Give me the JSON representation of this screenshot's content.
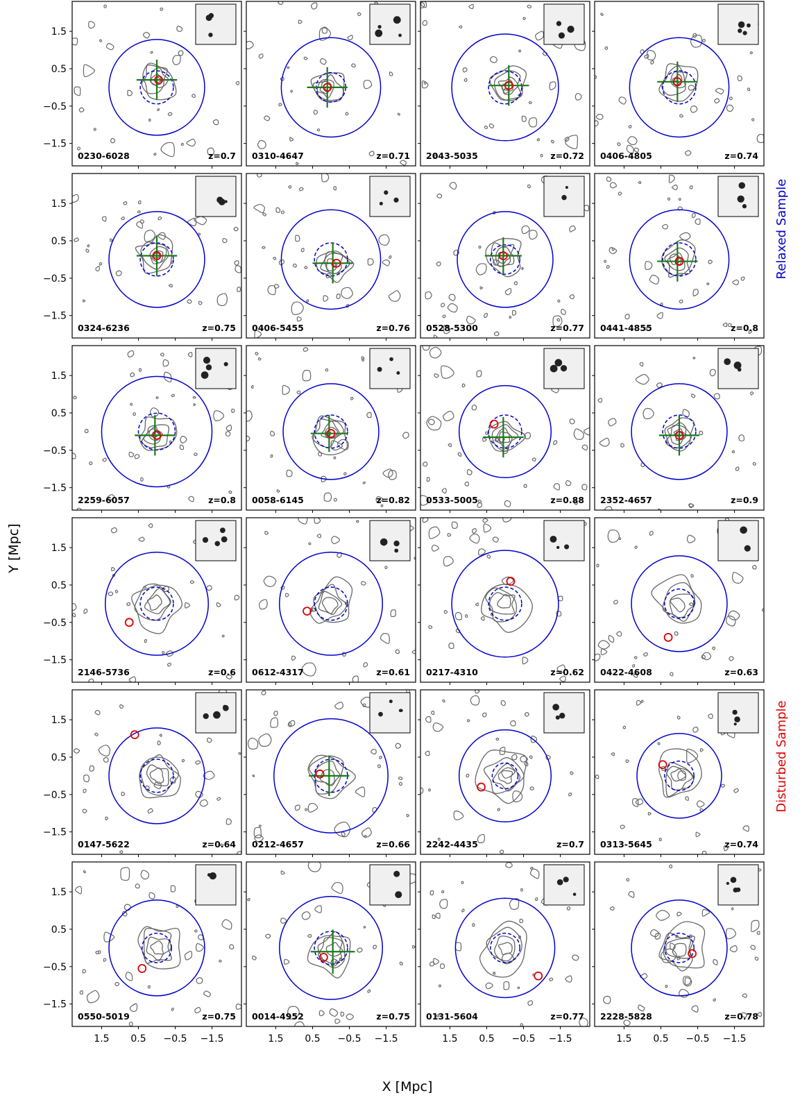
{
  "figure": {
    "ylabel": "Y [Mpc]",
    "xlabel": "X [Mpc]",
    "relaxed_label": "Relaxed Sample",
    "disturbed_label": "Disturbed Sample",
    "relaxed_color": "#0000cc",
    "disturbed_color": "#dd0000"
  },
  "chart_data": {
    "type": "scatter",
    "x_axis": {
      "label": "X [Mpc]",
      "inverted": true,
      "lim": [
        2.3,
        -2.3
      ],
      "ticks": [
        1.5,
        0.5,
        -0.5,
        -1.5
      ],
      "tick_labels": [
        "1.5",
        "0.5",
        "−0.5",
        "−1.5"
      ]
    },
    "y_axis": {
      "label": "Y [Mpc]",
      "lim": [
        -2.1,
        2.3
      ],
      "ticks": [
        1.5,
        0.5,
        -0.5,
        -1.5
      ],
      "tick_labels": [
        "1.5",
        "0.5",
        "−0.5",
        "−1.5"
      ]
    },
    "colors": {
      "contour": "#666666",
      "r500": "#0000cc",
      "bcg": "#dd0000",
      "xray_peak": "#1a7a1a"
    },
    "panels": [
      {
        "name": "0230-6028",
        "z": "z=0.7",
        "sample": "relaxed",
        "r500": 1.3,
        "core": 0.45,
        "bcg": [
          -0.05,
          0.2
        ],
        "xpeak": [
          0.0,
          0.2
        ],
        "xlen": 0.55
      },
      {
        "name": "0310-4647",
        "z": "z=0.71",
        "sample": "relaxed",
        "r500": 1.35,
        "core": 0.4,
        "bcg": [
          0.1,
          0.0
        ],
        "xpeak": [
          0.1,
          0.0
        ],
        "xlen": 0.55
      },
      {
        "name": "2043-5035",
        "z": "z=0.72",
        "sample": "relaxed",
        "r500": 1.45,
        "core": 0.45,
        "bcg": [
          -0.1,
          0.05
        ],
        "xpeak": [
          -0.1,
          0.05
        ],
        "xlen": 0.55
      },
      {
        "name": "0406-4805",
        "z": "z=0.74",
        "sample": "relaxed",
        "r500": 1.35,
        "core": 0.45,
        "bcg": [
          0.05,
          0.15
        ],
        "xpeak": [
          0.05,
          0.15
        ],
        "xlen": 0.55
      },
      {
        "name": "0324-6236",
        "z": "z=0.75",
        "sample": "relaxed",
        "r500": 1.3,
        "core": 0.45,
        "bcg": [
          0.0,
          0.1
        ],
        "xpeak": [
          0.0,
          0.1
        ],
        "xlen": 0.55
      },
      {
        "name": "0406-5455",
        "z": "z=0.76",
        "sample": "relaxed",
        "r500": 1.35,
        "core": 0.45,
        "bcg": [
          -0.15,
          -0.1
        ],
        "xpeak": [
          -0.05,
          -0.1
        ],
        "xlen": 0.55
      },
      {
        "name": "0528-5300",
        "z": "z=0.77",
        "sample": "relaxed",
        "r500": 1.3,
        "core": 0.4,
        "bcg": [
          0.05,
          0.1
        ],
        "xpeak": [
          0.05,
          0.1
        ],
        "xlen": 0.5
      },
      {
        "name": "0441-4855",
        "z": "z=0.8",
        "sample": "relaxed",
        "r500": 1.35,
        "core": 0.45,
        "bcg": [
          0.0,
          -0.05
        ],
        "xpeak": [
          0.05,
          -0.05
        ],
        "xlen": 0.55
      },
      {
        "name": "2259-6057",
        "z": "z=0.8",
        "sample": "relaxed",
        "r500": 1.5,
        "core": 0.5,
        "bcg": [
          0.0,
          -0.1
        ],
        "xpeak": [
          0.05,
          -0.1
        ],
        "xlen": 0.55
      },
      {
        "name": "0058-6145",
        "z": "z=0.82",
        "sample": "relaxed",
        "r500": 1.3,
        "core": 0.45,
        "bcg": [
          0.0,
          -0.05
        ],
        "xpeak": [
          0.05,
          -0.05
        ],
        "xlen": 0.5
      },
      {
        "name": "0533-5005",
        "z": "z=0.88",
        "sample": "relaxed",
        "r500": 1.25,
        "core": 0.45,
        "bcg": [
          0.3,
          0.2
        ],
        "xpeak": [
          0.05,
          -0.15
        ],
        "xlen": 0.55
      },
      {
        "name": "2352-4657",
        "z": "z=0.9",
        "sample": "relaxed",
        "r500": 1.3,
        "core": 0.45,
        "bcg": [
          0.0,
          -0.1
        ],
        "xpeak": [
          0.0,
          -0.1
        ],
        "xlen": 0.55
      },
      {
        "name": "2146-5736",
        "z": "z=0.6",
        "sample": "disturbed",
        "r500": 1.4,
        "core": 0.45,
        "bcg": [
          0.75,
          -0.5
        ],
        "xpeak": null,
        "xlen": 0
      },
      {
        "name": "0612-4317",
        "z": "z=0.61",
        "sample": "disturbed",
        "r500": 1.4,
        "core": 0.45,
        "bcg": [
          0.65,
          -0.2
        ],
        "xpeak": null,
        "xlen": 0
      },
      {
        "name": "0217-4310",
        "z": "z=0.62",
        "sample": "disturbed",
        "r500": 1.45,
        "core": 0.45,
        "bcg": [
          -0.15,
          0.6
        ],
        "xpeak": null,
        "xlen": 0
      },
      {
        "name": "0422-4608",
        "z": "z=0.63",
        "sample": "disturbed",
        "r500": 1.3,
        "core": 0.4,
        "bcg": [
          0.3,
          -0.9
        ],
        "xpeak": null,
        "xlen": 0
      },
      {
        "name": "0147-5622",
        "z": "z=0.64",
        "sample": "disturbed",
        "r500": 1.3,
        "core": 0.45,
        "bcg": [
          0.6,
          1.1
        ],
        "xpeak": null,
        "xlen": 0
      },
      {
        "name": "0212-4657",
        "z": "z=0.66",
        "sample": "disturbed",
        "r500": 1.55,
        "core": 0.45,
        "bcg": [
          0.3,
          0.05
        ],
        "xpeak": [
          0.05,
          0.0
        ],
        "xlen": 0.55
      },
      {
        "name": "2242-4435",
        "z": "z=0.7",
        "sample": "disturbed",
        "r500": 1.25,
        "core": 0.35,
        "bcg": [
          0.65,
          -0.3
        ],
        "xpeak": null,
        "xlen": 0
      },
      {
        "name": "0313-5645",
        "z": "z=0.74",
        "sample": "disturbed",
        "r500": 1.15,
        "core": 0.4,
        "bcg": [
          0.45,
          0.3
        ],
        "xpeak": null,
        "xlen": 0
      },
      {
        "name": "0550-5019",
        "z": "z=0.75",
        "sample": "disturbed",
        "r500": 1.3,
        "core": 0.4,
        "bcg": [
          0.4,
          -0.55
        ],
        "xpeak": null,
        "xlen": 0
      },
      {
        "name": "0014-4952",
        "z": "z=0.75",
        "sample": "disturbed",
        "r500": 1.4,
        "core": 0.45,
        "bcg": [
          0.2,
          -0.25
        ],
        "xpeak": [
          -0.05,
          -0.1
        ],
        "xlen": 0.6
      },
      {
        "name": "0131-5604",
        "z": "z=0.77",
        "sample": "disturbed",
        "r500": 1.35,
        "core": 0.4,
        "bcg": [
          -0.9,
          -0.75
        ],
        "xpeak": null,
        "xlen": 0
      },
      {
        "name": "2228-5828",
        "z": "z=0.78",
        "sample": "disturbed",
        "r500": 1.3,
        "core": 0.4,
        "bcg": [
          -0.35,
          -0.15
        ],
        "xpeak": null,
        "xlen": 0
      }
    ]
  }
}
